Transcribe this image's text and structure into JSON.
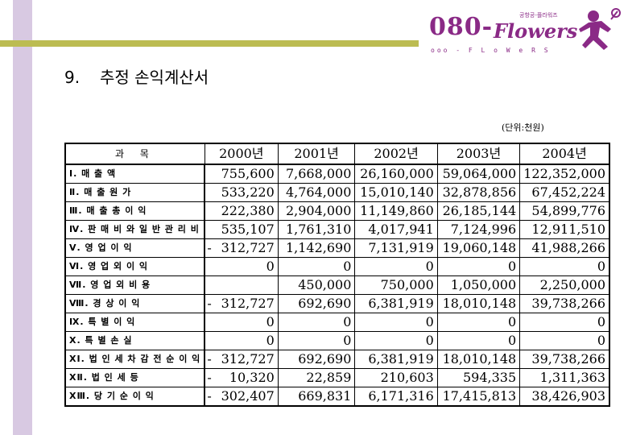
{
  "header": {
    "logo_main": "080-",
    "logo_flowers": "Flowers",
    "logo_tagline": "공항공-플라워즈",
    "logo_sub": "ooo - F L o W e R S"
  },
  "page": {
    "section_number": "9.",
    "title": "추정 손익계산서",
    "unit_note": "(단위:천원)"
  },
  "table": {
    "headers": [
      "과 목",
      "2000년",
      "2001년",
      "2002년",
      "2003년",
      "2004년"
    ],
    "rows": [
      {
        "account": "Ⅰ. 매 출 액",
        "sign": "",
        "values": [
          "755,600",
          "7,668,000",
          "26,160,000",
          "59,064,000",
          "122,352,000"
        ]
      },
      {
        "account": "Ⅱ. 매 출 원 가",
        "sign": "",
        "values": [
          "533,220",
          "4,764,000",
          "15,010,140",
          "32,878,856",
          "67,452,224"
        ]
      },
      {
        "account": "Ⅲ. 매 출 총 이 익",
        "sign": "",
        "values": [
          "222,380",
          "2,904,000",
          "11,149,860",
          "26,185,144",
          "54,899,776"
        ]
      },
      {
        "account": "Ⅳ. 판 매 비 와 일 반 관 리 비",
        "sign": "",
        "values": [
          "535,107",
          "1,761,310",
          "4,017,941",
          "7,124,996",
          "12,911,510"
        ]
      },
      {
        "account": "Ⅴ. 영 업 이 익",
        "sign": "-",
        "values": [
          "312,727",
          "1,142,690",
          "7,131,919",
          "19,060,148",
          "41,988,266"
        ]
      },
      {
        "account": "Ⅵ. 영 업 외 이 익",
        "sign": "",
        "values": [
          "0",
          "0",
          "0",
          "0",
          "0"
        ]
      },
      {
        "account": "Ⅶ. 영 업 외 비 용",
        "sign": "",
        "values": [
          "",
          "450,000",
          "750,000",
          "1,050,000",
          "2,250,000"
        ]
      },
      {
        "account": "Ⅷ. 경 상 이 익",
        "sign": "-",
        "values": [
          "312,727",
          "692,690",
          "6,381,919",
          "18,010,148",
          "39,738,266"
        ]
      },
      {
        "account": "Ⅸ. 특 별 이 익",
        "sign": "",
        "values": [
          "0",
          "0",
          "0",
          "0",
          "0"
        ]
      },
      {
        "account": "Ⅹ. 특 별 손 실",
        "sign": "",
        "values": [
          "0",
          "0",
          "0",
          "0",
          "0"
        ]
      },
      {
        "account": "XⅠ. 법 인 세 차 감 전 순 이 익",
        "sign": "-",
        "values": [
          "312,727",
          "692,690",
          "6,381,919",
          "18,010,148",
          "39,738,266"
        ]
      },
      {
        "account": "XⅡ. 법 인 세  등",
        "sign": "-",
        "values": [
          "10,320",
          "22,859",
          "210,603",
          "594,335",
          "1,311,363"
        ]
      },
      {
        "account": "XⅢ. 당 기 순 이 익",
        "sign": "-",
        "values": [
          "302,407",
          "669,831",
          "6,171,316",
          "17,415,813",
          "38,426,903"
        ]
      }
    ]
  }
}
